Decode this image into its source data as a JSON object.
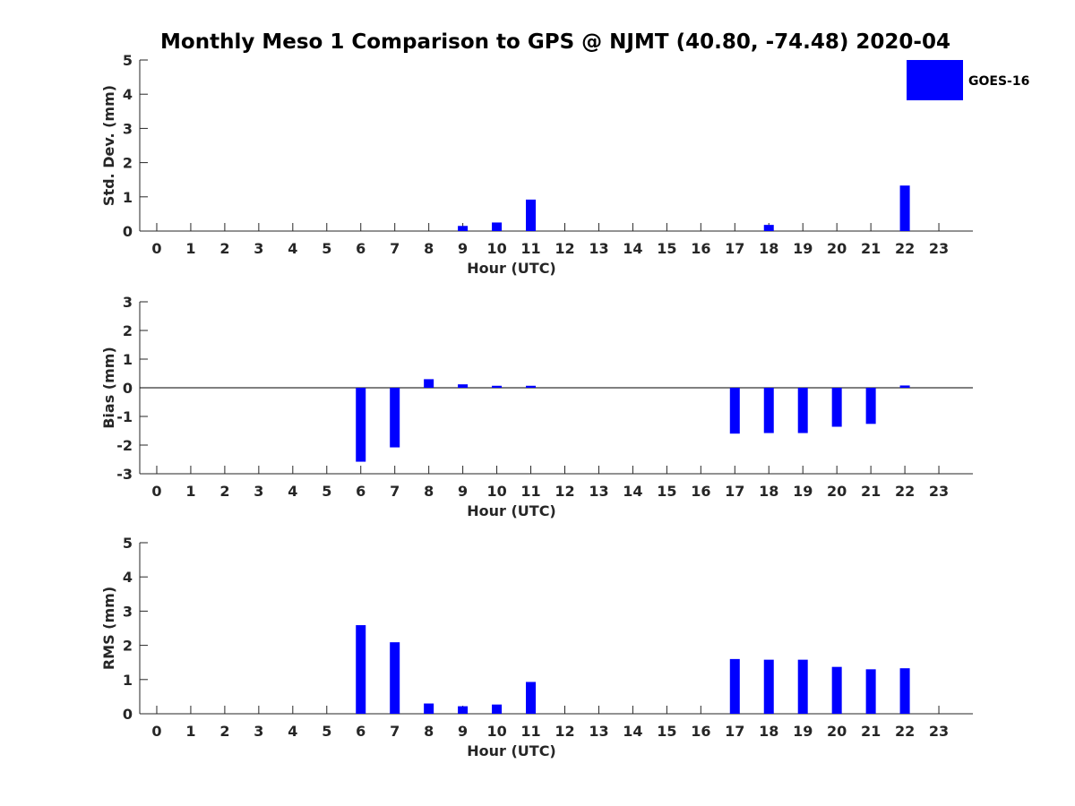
{
  "title": "Monthly Meso 1 Comparison to GPS @ NJMT (40.80, -74.48) 2020-04",
  "colors": {
    "bar": "#0000ff",
    "axis": "#262626",
    "title": "#000000"
  },
  "legend": {
    "label": "GOES-16",
    "placement": "top-right"
  },
  "chart_data": [
    {
      "type": "bar",
      "xlabel": "Hour (UTC)",
      "ylabel": "Std. Dev. (mm)",
      "ylim": [
        0,
        5
      ],
      "yticks": [
        0,
        1,
        2,
        3,
        4,
        5
      ],
      "categories": [
        "0",
        "1",
        "2",
        "3",
        "4",
        "5",
        "6",
        "7",
        "8",
        "9",
        "10",
        "11",
        "12",
        "13",
        "14",
        "15",
        "16",
        "17",
        "18",
        "19",
        "20",
        "21",
        "22",
        "23"
      ],
      "series": [
        {
          "name": "GOES-16",
          "values": [
            0,
            0,
            0,
            0,
            0,
            0,
            0,
            0,
            0,
            0.15,
            0.25,
            0.92,
            0,
            0,
            0,
            0,
            0,
            0,
            0.18,
            0,
            0,
            0,
            1.33,
            0
          ]
        }
      ]
    },
    {
      "type": "bar",
      "xlabel": "Hour (UTC)",
      "ylabel": "Bias (mm)",
      "ylim": [
        -3,
        3
      ],
      "yticks": [
        -3,
        -2,
        -1,
        0,
        1,
        2,
        3
      ],
      "zero_line": true,
      "categories": [
        "0",
        "1",
        "2",
        "3",
        "4",
        "5",
        "6",
        "7",
        "8",
        "9",
        "10",
        "11",
        "12",
        "13",
        "14",
        "15",
        "16",
        "17",
        "18",
        "19",
        "20",
        "21",
        "22",
        "23"
      ],
      "series": [
        {
          "name": "GOES-16",
          "values": [
            0,
            0,
            0,
            0,
            0,
            0,
            -2.58,
            -2.08,
            0.3,
            0.12,
            0.07,
            0.07,
            0,
            0,
            0,
            0,
            0,
            -1.6,
            -1.58,
            -1.58,
            -1.36,
            -1.26,
            0.08,
            0
          ]
        }
      ]
    },
    {
      "type": "bar",
      "xlabel": "Hour (UTC)",
      "ylabel": "RMS (mm)",
      "ylim": [
        0,
        5
      ],
      "yticks": [
        0,
        1,
        2,
        3,
        4,
        5
      ],
      "categories": [
        "0",
        "1",
        "2",
        "3",
        "4",
        "5",
        "6",
        "7",
        "8",
        "9",
        "10",
        "11",
        "12",
        "13",
        "14",
        "15",
        "16",
        "17",
        "18",
        "19",
        "20",
        "21",
        "22",
        "23"
      ],
      "series": [
        {
          "name": "GOES-16",
          "values": [
            0,
            0,
            0,
            0,
            0,
            0,
            2.59,
            2.09,
            0.3,
            0.22,
            0.27,
            0.93,
            0,
            0,
            0,
            0,
            0,
            1.6,
            1.58,
            1.58,
            1.37,
            1.3,
            1.33,
            0
          ]
        }
      ]
    }
  ]
}
